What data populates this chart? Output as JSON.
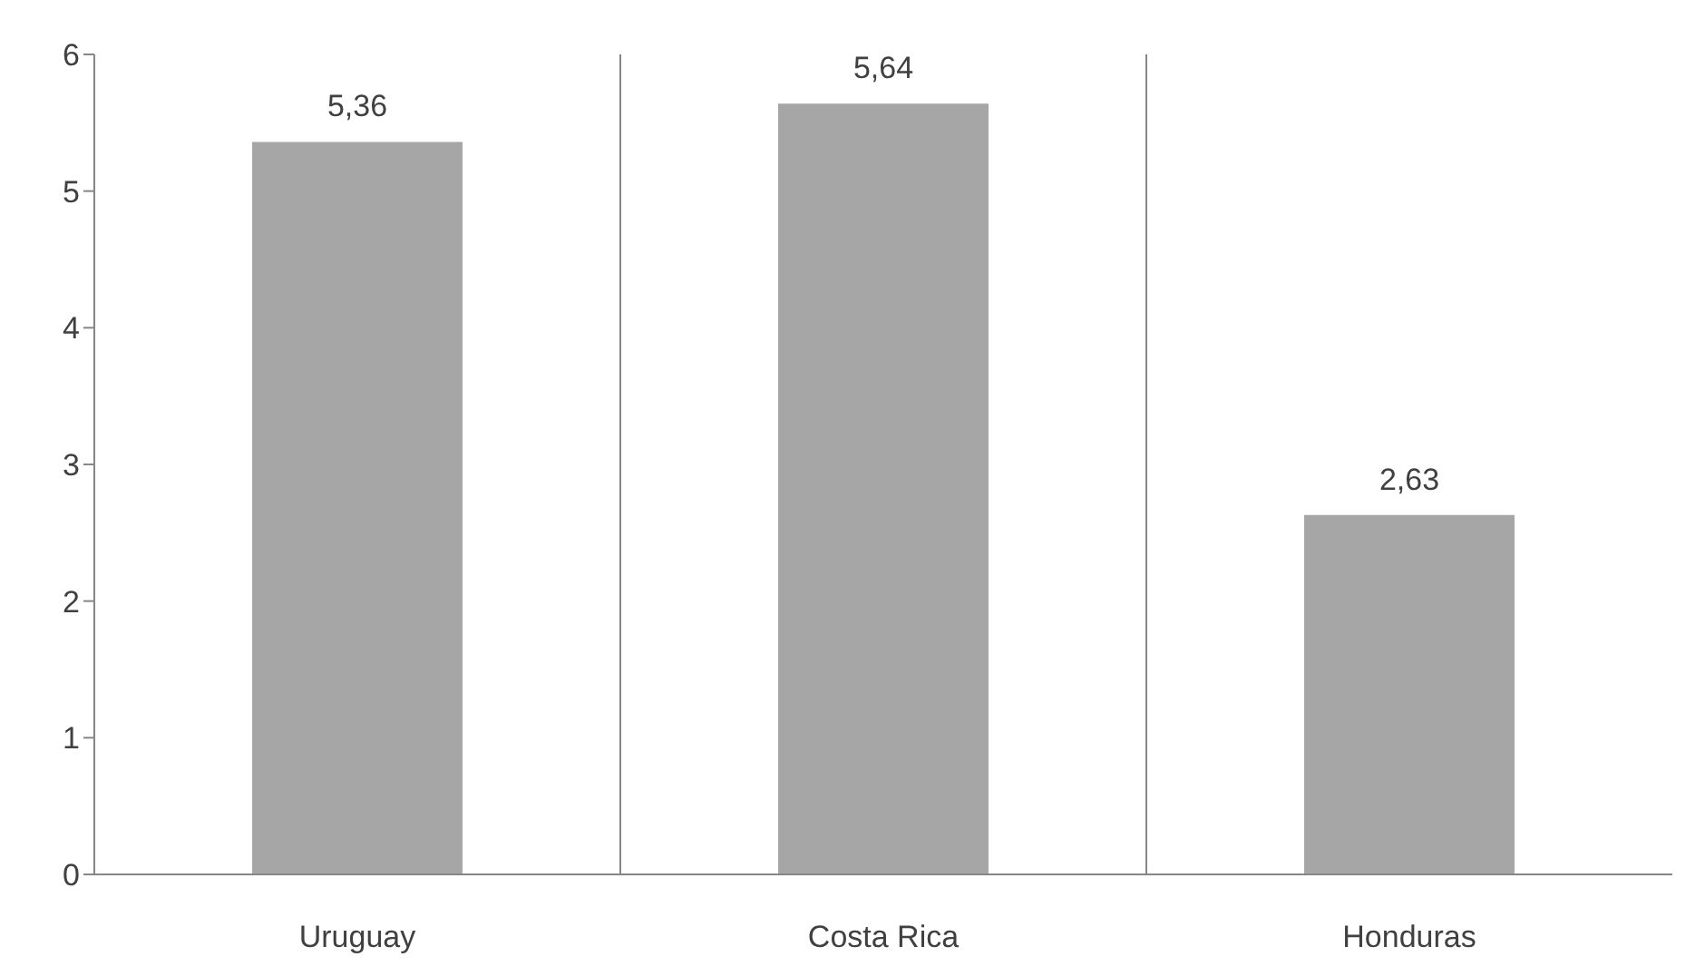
{
  "chart_data": {
    "type": "bar",
    "categories": [
      "Uruguay",
      "Costa Rica",
      "Honduras"
    ],
    "values": [
      5.36,
      5.64,
      2.63
    ],
    "color": "#a6a6a6",
    "value_labels": [
      "5,36",
      "5,64",
      "2,63"
    ],
    "ylim": [
      0,
      6
    ],
    "yticks": [
      0,
      1,
      2,
      3,
      4,
      5,
      6
    ],
    "grid": "x"
  }
}
